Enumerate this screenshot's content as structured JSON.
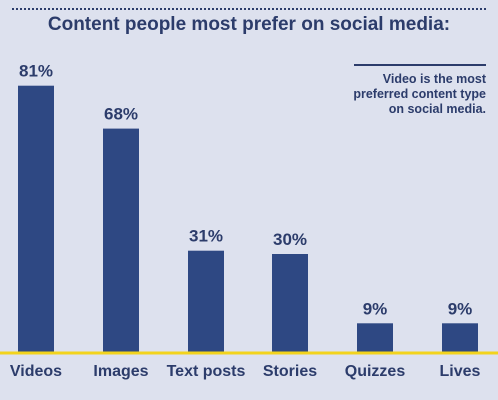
{
  "title": "Content people most prefer on social media:",
  "note": "Video is the most preferred content type on social media.",
  "colors": {
    "background": "#dde1ee",
    "bar": "#2e4883",
    "text": "#2c3c6b",
    "baseline": "#f2d31d"
  },
  "chart_data": {
    "type": "bar",
    "title": "Content people most prefer on social media:",
    "categories": [
      "Videos",
      "Images",
      "Text posts",
      "Stories",
      "Quizzes",
      "Lives"
    ],
    "values": [
      81,
      68,
      31,
      30,
      9,
      9
    ],
    "data_labels": [
      "81%",
      "68%",
      "31%",
      "30%",
      "9%",
      "9%"
    ],
    "xlabel": "",
    "ylabel": "",
    "ylim": [
      0,
      100
    ],
    "grid": false,
    "legend": "none"
  }
}
